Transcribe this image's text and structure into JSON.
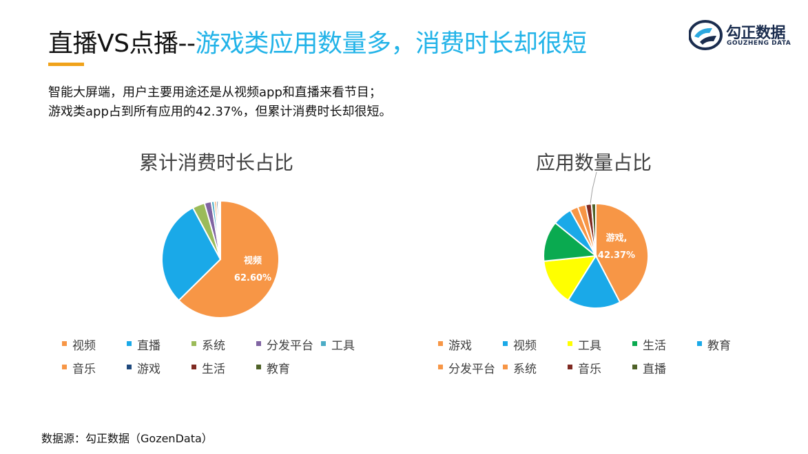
{
  "title": {
    "part1": "直播VS点播--",
    "part2": "游戏类应用数量多，消费时长却很短"
  },
  "logo": {
    "cn": "勾正数据",
    "en": "GOUZHENG DATA"
  },
  "subtitle": {
    "line1": "智能大屏端，用户主要用途还是从视频app和直播来看节目；",
    "line2": "游戏类app占到所有应用的42.37%，但累计消费时长却很短。"
  },
  "source": "数据源：勾正数据（GozenData）",
  "colors": {
    "orange": "#f79646",
    "blue": "#1aa9e8",
    "green_light": "#9bbb59",
    "purple": "#8064a2",
    "teal": "#4bacc6",
    "navy": "#1f497d",
    "maroon": "#7f2a22",
    "olive": "#4f6228",
    "yellow": "#ffff00",
    "green": "#0aaa50"
  },
  "chart_data": [
    {
      "type": "pie",
      "title": "累计消费时长占比",
      "categories": [
        "视频",
        "直播",
        "系统",
        "分发平台",
        "工具",
        "音乐",
        "游戏",
        "生活",
        "教育"
      ],
      "values": [
        62.6,
        29.6,
        3.4,
        1.9,
        0.8,
        0.6,
        0.5,
        0.4,
        0.2
      ],
      "colors": [
        "#f79646",
        "#1aa9e8",
        "#9bbb59",
        "#8064a2",
        "#4bacc6",
        "#f79646",
        "#1f497d",
        "#7f2a22",
        "#4f6228"
      ],
      "data_labels": [
        {
          "category": "视频",
          "value": "62.60%"
        }
      ],
      "legend_position": "bottom"
    },
    {
      "type": "pie",
      "title": "应用数量占比",
      "categories": [
        "游戏",
        "视频",
        "工具",
        "生活",
        "教育",
        "分发平台",
        "系统",
        "音乐",
        "直播"
      ],
      "values": [
        42.37,
        16.5,
        14.5,
        12.5,
        6.0,
        2.5,
        2.5,
        1.8,
        1.33
      ],
      "colors": [
        "#f79646",
        "#1aa9e8",
        "#ffff00",
        "#0aaa50",
        "#1aa9e8",
        "#f79646",
        "#f79646",
        "#7f2a22",
        "#4f6228"
      ],
      "data_labels": [
        {
          "category": "游戏,",
          "value": "42.37%"
        }
      ],
      "legend_position": "bottom"
    }
  ]
}
